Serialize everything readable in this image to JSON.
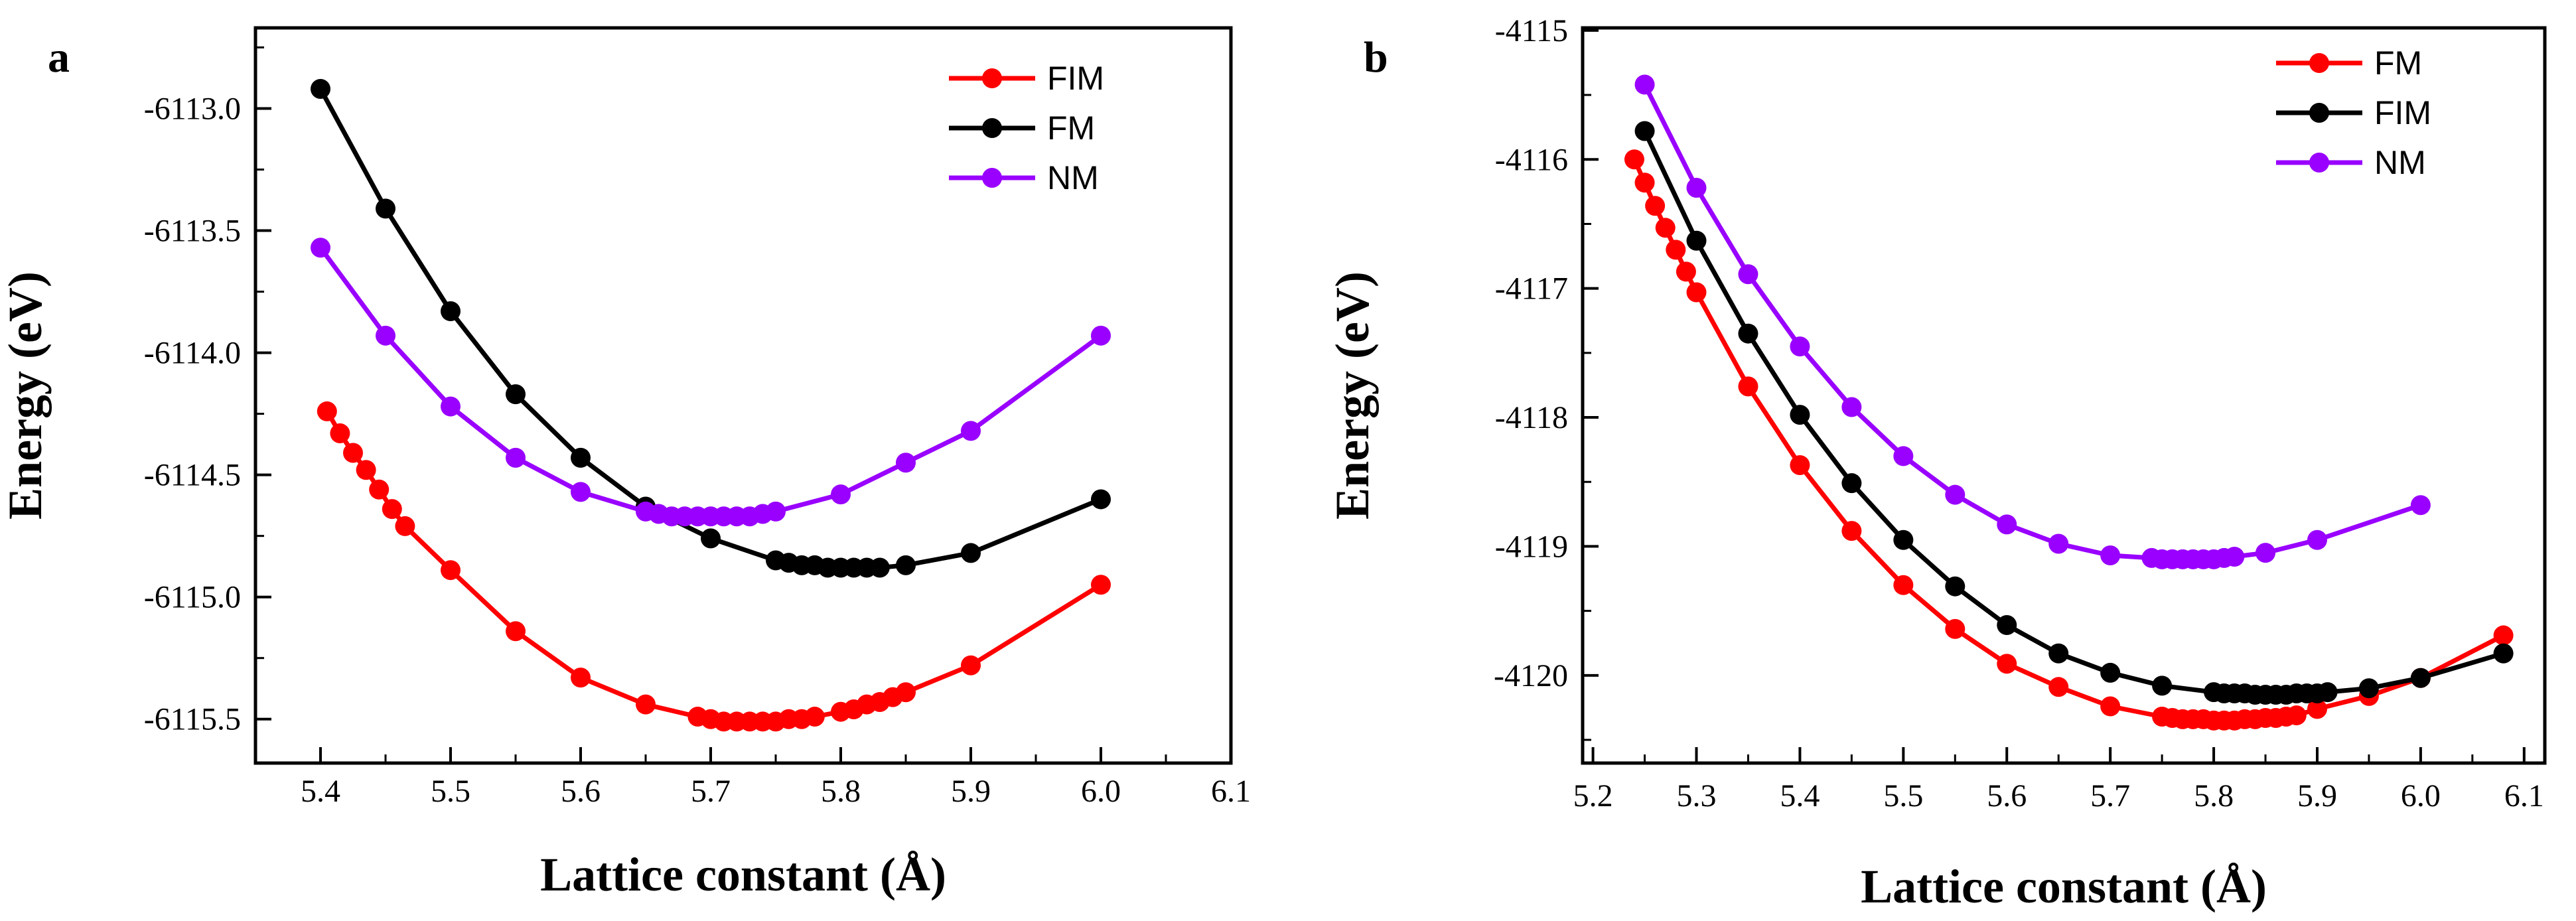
{
  "chart_data": [
    {
      "type": "line",
      "panel_label": "a",
      "title": "",
      "xlabel": "Lattice constant (Å)",
      "ylabel": "Energy (eV)",
      "xlim": [
        5.35,
        6.1
      ],
      "ylim": [
        -6115.68,
        -6112.67
      ],
      "xticks": [
        5.4,
        5.5,
        5.6,
        5.7,
        5.8,
        5.9,
        6.0,
        6.1
      ],
      "xtick_labels": [
        "5.4",
        "5.5",
        "5.6",
        "5.7",
        "5.8",
        "5.9",
        "6.0",
        "6.1"
      ],
      "yticks": [
        -6113.0,
        -6113.5,
        -6114.0,
        -6114.5,
        -6115.0,
        -6115.5
      ],
      "ytick_labels": [
        "-6113.0",
        "-6113.5",
        "-6114.0",
        "-6114.5",
        "-6115.0",
        "-6115.5"
      ],
      "legend_position": "top-right",
      "grid": false,
      "series": [
        {
          "name": "FIM",
          "color": "#ff0000",
          "x": [
            5.405,
            5.415,
            5.425,
            5.435,
            5.445,
            5.455,
            5.465,
            5.5,
            5.55,
            5.6,
            5.65,
            5.69,
            5.7,
            5.71,
            5.72,
            5.73,
            5.74,
            5.75,
            5.76,
            5.77,
            5.78,
            5.8,
            5.81,
            5.82,
            5.83,
            5.84,
            5.85,
            5.9,
            6.0
          ],
          "y": [
            -6114.24,
            -6114.33,
            -6114.41,
            -6114.48,
            -6114.56,
            -6114.64,
            -6114.71,
            -6114.89,
            -6115.14,
            -6115.33,
            -6115.44,
            -6115.49,
            -6115.5,
            -6115.51,
            -6115.51,
            -6115.51,
            -6115.51,
            -6115.51,
            -6115.5,
            -6115.5,
            -6115.49,
            -6115.47,
            -6115.46,
            -6115.44,
            -6115.43,
            -6115.41,
            -6115.39,
            -6115.28,
            -6114.95
          ]
        },
        {
          "name": "FM",
          "color": "#000000",
          "x": [
            5.4,
            5.45,
            5.5,
            5.55,
            5.6,
            5.65,
            5.7,
            5.75,
            5.76,
            5.77,
            5.78,
            5.79,
            5.8,
            5.81,
            5.82,
            5.83,
            5.85,
            5.9,
            6.0
          ],
          "y": [
            -6112.92,
            -6113.41,
            -6113.83,
            -6114.17,
            -6114.43,
            -6114.63,
            -6114.76,
            -6114.85,
            -6114.86,
            -6114.87,
            -6114.87,
            -6114.88,
            -6114.88,
            -6114.88,
            -6114.88,
            -6114.88,
            -6114.87,
            -6114.82,
            -6114.6
          ]
        },
        {
          "name": "NM",
          "color": "#9900ff",
          "x": [
            5.4,
            5.45,
            5.5,
            5.55,
            5.6,
            5.65,
            5.66,
            5.67,
            5.68,
            5.69,
            5.7,
            5.71,
            5.72,
            5.73,
            5.74,
            5.75,
            5.8,
            5.85,
            5.9,
            6.0
          ],
          "y": [
            -6113.57,
            -6113.93,
            -6114.22,
            -6114.43,
            -6114.57,
            -6114.65,
            -6114.66,
            -6114.67,
            -6114.67,
            -6114.67,
            -6114.67,
            -6114.67,
            -6114.67,
            -6114.67,
            -6114.66,
            -6114.65,
            -6114.58,
            -6114.45,
            -6114.32,
            -6113.93
          ]
        }
      ]
    },
    {
      "type": "line",
      "panel_label": "b",
      "title": "",
      "xlabel": "Lattice constant (Å)",
      "ylabel": "Energy (eV)",
      "xlim": [
        5.19,
        6.12
      ],
      "ylim": [
        -4120.68,
        -4114.98
      ],
      "xticks": [
        5.2,
        5.3,
        5.4,
        5.5,
        5.6,
        5.7,
        5.8,
        5.9,
        6.0,
        6.1
      ],
      "xtick_labels": [
        "5.2",
        "5.3",
        "5.4",
        "5.5",
        "5.6",
        "5.7",
        "5.8",
        "5.9",
        "6.0",
        "6.1"
      ],
      "yticks": [
        -4115,
        -4116,
        -4117,
        -4118,
        -4119,
        -4120
      ],
      "ytick_labels": [
        "-4115",
        "-4116",
        "-4117",
        "-4118",
        "-4119",
        "-4120"
      ],
      "legend_position": "top-right",
      "grid": false,
      "series": [
        {
          "name": "FM",
          "color": "#ff0000",
          "x": [
            5.24,
            5.25,
            5.26,
            5.27,
            5.28,
            5.29,
            5.3,
            5.35,
            5.4,
            5.45,
            5.5,
            5.55,
            5.6,
            5.65,
            5.7,
            5.75,
            5.76,
            5.77,
            5.78,
            5.79,
            5.8,
            5.81,
            5.82,
            5.83,
            5.84,
            5.85,
            5.86,
            5.87,
            5.88,
            5.9,
            5.95,
            6.0,
            6.08
          ],
          "y": [
            -4116.0,
            -4116.18,
            -4116.36,
            -4116.53,
            -4116.7,
            -4116.87,
            -4117.03,
            -4117.76,
            -4118.37,
            -4118.88,
            -4119.3,
            -4119.64,
            -4119.91,
            -4120.09,
            -4120.24,
            -4120.32,
            -4120.33,
            -4120.34,
            -4120.34,
            -4120.34,
            -4120.35,
            -4120.35,
            -4120.35,
            -4120.34,
            -4120.34,
            -4120.33,
            -4120.33,
            -4120.32,
            -4120.31,
            -4120.26,
            -4120.16,
            -4120.02,
            -4119.69
          ]
        },
        {
          "name": "FIM",
          "color": "#000000",
          "x": [
            5.25,
            5.3,
            5.35,
            5.4,
            5.45,
            5.5,
            5.55,
            5.6,
            5.65,
            5.7,
            5.75,
            5.8,
            5.81,
            5.82,
            5.83,
            5.84,
            5.85,
            5.86,
            5.87,
            5.88,
            5.89,
            5.9,
            5.91,
            5.95,
            6.0,
            6.08
          ],
          "y": [
            -4115.78,
            -4116.63,
            -4117.35,
            -4117.98,
            -4118.51,
            -4118.95,
            -4119.31,
            -4119.61,
            -4119.83,
            -4119.98,
            -4120.08,
            -4120.13,
            -4120.14,
            -4120.14,
            -4120.14,
            -4120.15,
            -4120.15,
            -4120.15,
            -4120.15,
            -4120.14,
            -4120.14,
            -4120.14,
            -4120.13,
            -4120.1,
            -4120.02,
            -4119.83
          ]
        },
        {
          "name": "NM",
          "color": "#9900ff",
          "x": [
            5.25,
            5.3,
            5.35,
            5.4,
            5.45,
            5.5,
            5.55,
            5.6,
            5.65,
            5.7,
            5.74,
            5.75,
            5.76,
            5.77,
            5.78,
            5.79,
            5.8,
            5.81,
            5.82,
            5.85,
            5.9,
            6.0
          ],
          "y": [
            -4115.42,
            -4116.22,
            -4116.89,
            -4117.45,
            -4117.92,
            -4118.3,
            -4118.6,
            -4118.83,
            -4118.98,
            -4119.07,
            -4119.09,
            -4119.1,
            -4119.1,
            -4119.1,
            -4119.1,
            -4119.1,
            -4119.1,
            -4119.09,
            -4119.08,
            -4119.05,
            -4118.95,
            -4118.68
          ]
        }
      ]
    }
  ]
}
